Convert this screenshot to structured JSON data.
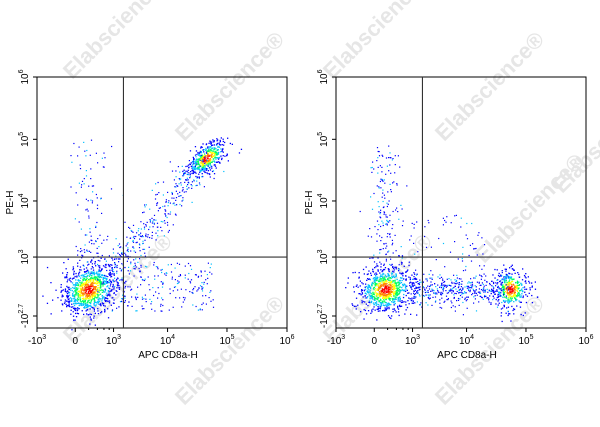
{
  "watermark": "Elabscience",
  "watermark_mark": "®",
  "chart_data": [
    {
      "type": "scatter",
      "plot_style": "flow-cytometry-density-dot-plot",
      "xlabel": "APC CD8a-H",
      "ylabel": "PE-H",
      "x_scale": "biexponential",
      "y_scale": "biexponential",
      "x_ticks": [
        {
          "base": "-10",
          "exp": "3",
          "value": -1000
        },
        {
          "base": "0",
          "exp": "",
          "value": 0
        },
        {
          "base": "10",
          "exp": "3",
          "value": 1000
        },
        {
          "base": "10",
          "exp": "4",
          "value": 10000
        },
        {
          "base": "10",
          "exp": "5",
          "value": 100000
        },
        {
          "base": "10",
          "exp": "6",
          "value": 1000000
        }
      ],
      "y_ticks": [
        {
          "base": "-10",
          "exp": "2.7",
          "value": -500
        },
        {
          "base": "10",
          "exp": "3",
          "value": 1000
        },
        {
          "base": "10",
          "exp": "4",
          "value": 10000
        },
        {
          "base": "10",
          "exp": "5",
          "value": 100000
        },
        {
          "base": "10",
          "exp": "6",
          "value": 1000000
        }
      ],
      "gate_x": 1600,
      "gate_y": 1000,
      "grid": false,
      "populations": [
        {
          "x_center": 200,
          "y_center": 100,
          "density": "high"
        },
        {
          "x_center": 45000,
          "y_center": 50000,
          "density": "high"
        },
        {
          "x_center": 3000,
          "y_center": 3000,
          "density": "low",
          "shape": "diagonal bridge"
        }
      ],
      "density_colors": [
        "#0000ff",
        "#00c0ff",
        "#00ff60",
        "#ffff00",
        "#ff8000",
        "#ff0000"
      ]
    },
    {
      "type": "scatter",
      "plot_style": "flow-cytometry-density-dot-plot",
      "xlabel": "APC CD8a-H",
      "ylabel": "PE-H",
      "x_scale": "biexponential",
      "y_scale": "biexponential",
      "x_ticks": [
        {
          "base": "-10",
          "exp": "3",
          "value": -1000
        },
        {
          "base": "0",
          "exp": "",
          "value": 0
        },
        {
          "base": "10",
          "exp": "3",
          "value": 1000
        },
        {
          "base": "10",
          "exp": "4",
          "value": 10000
        },
        {
          "base": "10",
          "exp": "5",
          "value": 100000
        },
        {
          "base": "10",
          "exp": "6",
          "value": 1000000
        }
      ],
      "y_ticks": [
        {
          "base": "-10",
          "exp": "2.7",
          "value": -500
        },
        {
          "base": "10",
          "exp": "3",
          "value": 1000
        },
        {
          "base": "10",
          "exp": "4",
          "value": 10000
        },
        {
          "base": "10",
          "exp": "5",
          "value": 100000
        },
        {
          "base": "10",
          "exp": "6",
          "value": 1000000
        }
      ],
      "gate_x": 1600,
      "gate_y": 1000,
      "grid": false,
      "populations": [
        {
          "x_center": 150,
          "y_center": 100,
          "density": "high"
        },
        {
          "x_center": 55000,
          "y_center": 100,
          "density": "high"
        },
        {
          "x_center": 5000,
          "y_center": 100,
          "density": "low",
          "shape": "horizontal bridge"
        }
      ],
      "density_colors": [
        "#0000ff",
        "#00c0ff",
        "#00ff60",
        "#ffff00",
        "#ff8000",
        "#ff0000"
      ]
    }
  ]
}
